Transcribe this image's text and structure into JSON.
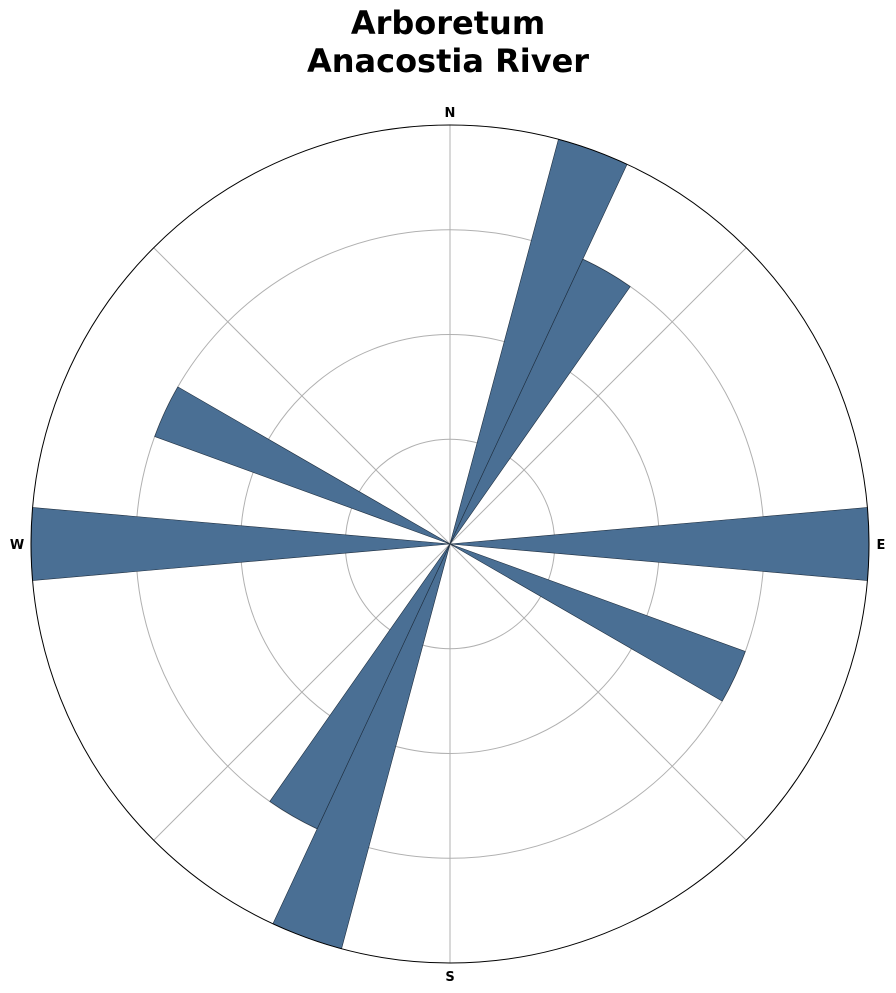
{
  "chart_data": {
    "type": "rose",
    "title_lines": [
      "Arboretum",
      "Anacostia River"
    ],
    "direction_labels": {
      "n": "N",
      "e": "E",
      "s": "S",
      "w": "W"
    },
    "rmax": 4,
    "rings": [
      1,
      2,
      3,
      4
    ],
    "sector_width_deg": 10,
    "bar_color": "#4a6f94",
    "bars": [
      {
        "angle": 20,
        "value": 4
      },
      {
        "angle": 30,
        "value": 3
      },
      {
        "angle": 90,
        "value": 4
      },
      {
        "angle": 115,
        "value": 3
      },
      {
        "angle": 200,
        "value": 4
      },
      {
        "angle": 210,
        "value": 3
      },
      {
        "angle": 270,
        "value": 4
      },
      {
        "angle": 295,
        "value": 3
      }
    ]
  }
}
